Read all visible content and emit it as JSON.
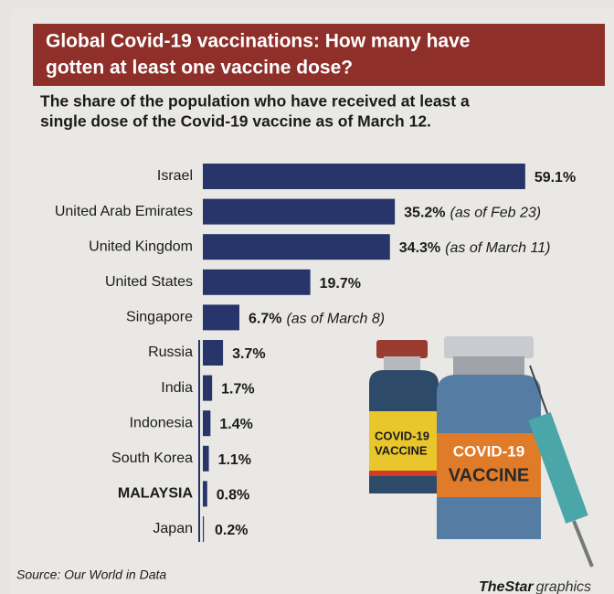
{
  "chart_data": {
    "type": "bar",
    "orientation": "horizontal",
    "title_lines": [
      "Global Covid-19 vaccinations: How many have",
      "gotten at least one vaccine dose?"
    ],
    "subtitle_lines": [
      "The share of the population who have received at least a",
      "single dose of the Covid-19 vaccine as of March 12."
    ],
    "categories": [
      "Israel",
      "United Arab Emirates",
      "United Kingdom",
      "United States",
      "Singapore",
      "Russia",
      "India",
      "Indonesia",
      "South Korea",
      "MALAYSIA",
      "Japan"
    ],
    "values": [
      59.1,
      35.2,
      34.3,
      19.7,
      6.7,
      3.7,
      1.7,
      1.4,
      1.1,
      0.8,
      0.2
    ],
    "value_labels": [
      "59.1%",
      "35.2%",
      "34.3%",
      "19.7%",
      "6.7%",
      "3.7%",
      "1.7%",
      "1.4%",
      "1.1%",
      "0.8%",
      "0.2%"
    ],
    "value_notes": [
      null,
      "(as of Feb 23)",
      "(as of March 11)",
      null,
      "(as of March 8)",
      null,
      null,
      null,
      null,
      null,
      null
    ],
    "highlight_category": 9,
    "color": "#27356a",
    "source": "Source: Our World in Data",
    "credit_brand": "TheStar",
    "credit_suffix": "graphics",
    "illustration_text": [
      "COVID-19",
      "VACCINE"
    ]
  }
}
